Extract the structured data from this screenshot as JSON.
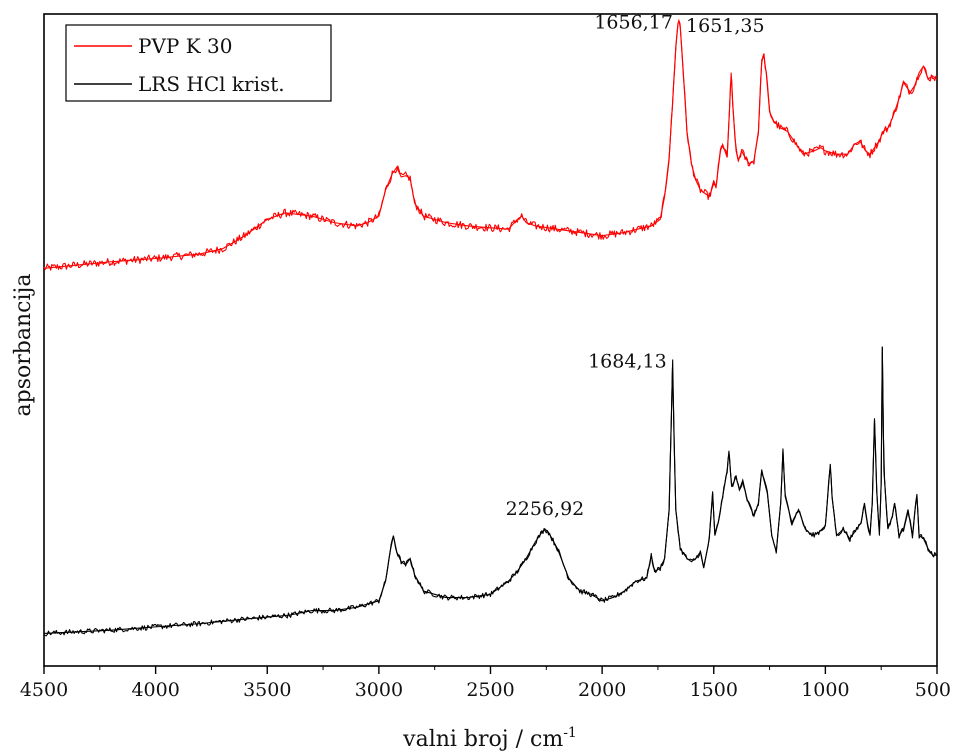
{
  "chart_data": {
    "type": "line",
    "title": "",
    "xlabel": "valni broj / cm",
    "xlabel_sup": "-1",
    "ylabel": "apsorbancija",
    "xlim": [
      4500,
      500
    ],
    "x_reversed": true,
    "xticks": [
      4500,
      4000,
      3500,
      3000,
      2500,
      2000,
      1500,
      1000,
      500
    ],
    "xtick_labels": [
      "4500",
      "4000",
      "3500",
      "3000",
      "2500",
      "2000",
      "1500",
      "1000",
      "500"
    ],
    "ylim": [
      0,
      1
    ],
    "y_ticks_labeled": false,
    "grid": false,
    "legend": {
      "placement": "top-left",
      "entries": [
        {
          "name": "PVP K 30",
          "color": "#ff0000"
        },
        {
          "name": "LRS HCl krist.",
          "color": "#000000"
        }
      ]
    },
    "series": [
      {
        "name": "PVP K 30",
        "color": "#ff0000",
        "noise": 0.006,
        "points": [
          [
            4500,
            0.61
          ],
          [
            4200,
            0.62
          ],
          [
            4000,
            0.625
          ],
          [
            3800,
            0.632
          ],
          [
            3700,
            0.64
          ],
          [
            3600,
            0.66
          ],
          [
            3500,
            0.685
          ],
          [
            3420,
            0.695
          ],
          [
            3300,
            0.69
          ],
          [
            3200,
            0.68
          ],
          [
            3100,
            0.675
          ],
          [
            3050,
            0.68
          ],
          [
            3000,
            0.69
          ],
          [
            2970,
            0.73
          ],
          [
            2940,
            0.755
          ],
          [
            2920,
            0.765
          ],
          [
            2900,
            0.75
          ],
          [
            2880,
            0.752
          ],
          [
            2860,
            0.748
          ],
          [
            2840,
            0.71
          ],
          [
            2800,
            0.69
          ],
          [
            2700,
            0.68
          ],
          [
            2600,
            0.675
          ],
          [
            2500,
            0.672
          ],
          [
            2420,
            0.67
          ],
          [
            2380,
            0.685
          ],
          [
            2360,
            0.69
          ],
          [
            2340,
            0.68
          ],
          [
            2300,
            0.675
          ],
          [
            2200,
            0.67
          ],
          [
            2000,
            0.66
          ],
          [
            1900,
            0.665
          ],
          [
            1780,
            0.675
          ],
          [
            1740,
            0.685
          ],
          [
            1720,
            0.72
          ],
          [
            1700,
            0.78
          ],
          [
            1685,
            0.86
          ],
          [
            1670,
            0.95
          ],
          [
            1660,
            0.985
          ],
          [
            1656,
            0.99
          ],
          [
            1651,
            0.985
          ],
          [
            1640,
            0.93
          ],
          [
            1620,
            0.82
          ],
          [
            1600,
            0.77
          ],
          [
            1580,
            0.745
          ],
          [
            1560,
            0.73
          ],
          [
            1540,
            0.725
          ],
          [
            1520,
            0.72
          ],
          [
            1500,
            0.74
          ],
          [
            1490,
            0.735
          ],
          [
            1470,
            0.79
          ],
          [
            1460,
            0.8
          ],
          [
            1440,
            0.78
          ],
          [
            1430,
            0.85
          ],
          [
            1422,
            0.91
          ],
          [
            1415,
            0.86
          ],
          [
            1400,
            0.79
          ],
          [
            1390,
            0.775
          ],
          [
            1375,
            0.79
          ],
          [
            1360,
            0.78
          ],
          [
            1340,
            0.77
          ],
          [
            1320,
            0.775
          ],
          [
            1300,
            0.82
          ],
          [
            1285,
            0.93
          ],
          [
            1275,
            0.935
          ],
          [
            1265,
            0.91
          ],
          [
            1250,
            0.85
          ],
          [
            1230,
            0.835
          ],
          [
            1200,
            0.825
          ],
          [
            1170,
            0.82
          ],
          [
            1130,
            0.8
          ],
          [
            1100,
            0.785
          ],
          [
            1050,
            0.79
          ],
          [
            1020,
            0.795
          ],
          [
            1000,
            0.79
          ],
          [
            950,
            0.785
          ],
          [
            900,
            0.785
          ],
          [
            870,
            0.8
          ],
          [
            845,
            0.805
          ],
          [
            820,
            0.79
          ],
          [
            800,
            0.785
          ],
          [
            760,
            0.805
          ],
          [
            740,
            0.82
          ],
          [
            720,
            0.825
          ],
          [
            700,
            0.84
          ],
          [
            670,
            0.87
          ],
          [
            650,
            0.895
          ],
          [
            620,
            0.88
          ],
          [
            600,
            0.89
          ],
          [
            580,
            0.91
          ],
          [
            560,
            0.92
          ],
          [
            540,
            0.9
          ],
          [
            520,
            0.905
          ],
          [
            500,
            0.9
          ]
        ]
      },
      {
        "name": "LRS HCl krist.",
        "color": "#000000",
        "noise": 0.004,
        "points": [
          [
            4500,
            0.05
          ],
          [
            4200,
            0.055
          ],
          [
            4000,
            0.06
          ],
          [
            3800,
            0.065
          ],
          [
            3600,
            0.072
          ],
          [
            3400,
            0.078
          ],
          [
            3300,
            0.085
          ],
          [
            3200,
            0.085
          ],
          [
            3100,
            0.09
          ],
          [
            3000,
            0.1
          ],
          [
            2970,
            0.13
          ],
          [
            2950,
            0.175
          ],
          [
            2935,
            0.2
          ],
          [
            2920,
            0.175
          ],
          [
            2900,
            0.16
          ],
          [
            2880,
            0.155
          ],
          [
            2860,
            0.165
          ],
          [
            2840,
            0.14
          ],
          [
            2800,
            0.115
          ],
          [
            2700,
            0.105
          ],
          [
            2600,
            0.105
          ],
          [
            2500,
            0.11
          ],
          [
            2420,
            0.13
          ],
          [
            2380,
            0.145
          ],
          [
            2340,
            0.165
          ],
          [
            2300,
            0.19
          ],
          [
            2270,
            0.205
          ],
          [
            2256,
            0.21
          ],
          [
            2240,
            0.205
          ],
          [
            2200,
            0.18
          ],
          [
            2150,
            0.135
          ],
          [
            2100,
            0.115
          ],
          [
            2050,
            0.11
          ],
          [
            2000,
            0.1
          ],
          [
            1950,
            0.105
          ],
          [
            1900,
            0.115
          ],
          [
            1850,
            0.13
          ],
          [
            1800,
            0.135
          ],
          [
            1780,
            0.17
          ],
          [
            1765,
            0.145
          ],
          [
            1740,
            0.15
          ],
          [
            1720,
            0.165
          ],
          [
            1700,
            0.24
          ],
          [
            1690,
            0.38
          ],
          [
            1684,
            0.47
          ],
          [
            1678,
            0.35
          ],
          [
            1670,
            0.24
          ],
          [
            1650,
            0.18
          ],
          [
            1620,
            0.165
          ],
          [
            1600,
            0.16
          ],
          [
            1580,
            0.165
          ],
          [
            1560,
            0.175
          ],
          [
            1545,
            0.15
          ],
          [
            1520,
            0.195
          ],
          [
            1505,
            0.265
          ],
          [
            1495,
            0.2
          ],
          [
            1480,
            0.22
          ],
          [
            1460,
            0.26
          ],
          [
            1440,
            0.3
          ],
          [
            1432,
            0.33
          ],
          [
            1420,
            0.275
          ],
          [
            1400,
            0.29
          ],
          [
            1385,
            0.27
          ],
          [
            1370,
            0.285
          ],
          [
            1350,
            0.255
          ],
          [
            1320,
            0.23
          ],
          [
            1300,
            0.25
          ],
          [
            1285,
            0.3
          ],
          [
            1275,
            0.285
          ],
          [
            1260,
            0.265
          ],
          [
            1240,
            0.2
          ],
          [
            1220,
            0.175
          ],
          [
            1200,
            0.25
          ],
          [
            1190,
            0.33
          ],
          [
            1180,
            0.26
          ],
          [
            1150,
            0.22
          ],
          [
            1120,
            0.24
          ],
          [
            1090,
            0.21
          ],
          [
            1060,
            0.2
          ],
          [
            1030,
            0.205
          ],
          [
            1000,
            0.215
          ],
          [
            985,
            0.28
          ],
          [
            978,
            0.31
          ],
          [
            970,
            0.26
          ],
          [
            950,
            0.2
          ],
          [
            920,
            0.21
          ],
          [
            890,
            0.195
          ],
          [
            860,
            0.21
          ],
          [
            840,
            0.22
          ],
          [
            825,
            0.25
          ],
          [
            812,
            0.22
          ],
          [
            800,
            0.2
          ],
          [
            790,
            0.25
          ],
          [
            780,
            0.38
          ],
          [
            770,
            0.27
          ],
          [
            758,
            0.2
          ],
          [
            750,
            0.28
          ],
          [
            745,
            0.49
          ],
          [
            738,
            0.3
          ],
          [
            720,
            0.21
          ],
          [
            700,
            0.23
          ],
          [
            690,
            0.25
          ],
          [
            670,
            0.2
          ],
          [
            650,
            0.21
          ],
          [
            630,
            0.24
          ],
          [
            610,
            0.2
          ],
          [
            595,
            0.25
          ],
          [
            590,
            0.26
          ],
          [
            580,
            0.2
          ],
          [
            560,
            0.195
          ],
          [
            540,
            0.18
          ],
          [
            520,
            0.17
          ],
          [
            500,
            0.17
          ]
        ]
      }
    ],
    "annotations": [
      {
        "text": "1656,17",
        "x": 1656,
        "anchor": "end"
      },
      {
        "text": "1651,35",
        "x": 1651,
        "anchor": "start"
      },
      {
        "text": "1684,13",
        "x": 1684,
        "anchor": "end"
      },
      {
        "text": "2256,92",
        "x": 2256,
        "anchor": "middle"
      }
    ]
  }
}
